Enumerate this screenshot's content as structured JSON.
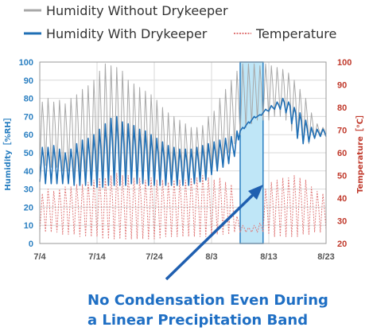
{
  "legend": {
    "without": "Humidity Without Drykeeper",
    "with": "Humidity With Drykeeper",
    "temperature": "Temperature"
  },
  "annotation": {
    "line1": "No Condensation Even During",
    "line2": "a Linear Precipitation Band"
  },
  "colors": {
    "without": "#a8a8a8",
    "with": "#1f6fb5",
    "temperature": "#e07a7a",
    "highlight_fill": "#bfe6f7",
    "highlight_stroke": "#2a7fc1",
    "arrow": "#1f5fb0"
  },
  "chart_data": {
    "type": "line",
    "x_unit": "day",
    "x_ticks": [
      "7/4",
      "7/14",
      "7/24",
      "8/3",
      "8/13",
      "8/23"
    ],
    "x_range": [
      "7/4",
      "8/23"
    ],
    "y_left": {
      "label": "Humidity［%RH］",
      "range": [
        0,
        100
      ],
      "ticks": [
        0,
        10,
        20,
        30,
        40,
        50,
        60,
        70,
        80,
        90,
        100
      ]
    },
    "y_right": {
      "label": "Temperature［℃］",
      "range": [
        20,
        100
      ],
      "ticks": [
        20,
        30,
        40,
        50,
        60,
        70,
        80,
        90,
        100
      ]
    },
    "highlight_band": {
      "from": "8/8",
      "to": "8/12"
    },
    "grid": true,
    "legend_position": "top-left",
    "series": [
      {
        "name": "Humidity Without Drykeeper",
        "axis": "left",
        "style": "solid-grey",
        "daily": [
          [
            0,
            44,
            78
          ],
          [
            1,
            43,
            80
          ],
          [
            2,
            42,
            78
          ],
          [
            3,
            42,
            79
          ],
          [
            4,
            40,
            77
          ],
          [
            5,
            40,
            80
          ],
          [
            6,
            38,
            82
          ],
          [
            7,
            37,
            85
          ],
          [
            8,
            36,
            87
          ],
          [
            9,
            35,
            90
          ],
          [
            10,
            33,
            95
          ],
          [
            11,
            33,
            99
          ],
          [
            12,
            34,
            98
          ],
          [
            13,
            35,
            97
          ],
          [
            14,
            35,
            95
          ],
          [
            15,
            36,
            90
          ],
          [
            16,
            36,
            88
          ],
          [
            17,
            36,
            86
          ],
          [
            18,
            36,
            84
          ],
          [
            19,
            36,
            82
          ],
          [
            20,
            36,
            79
          ],
          [
            21,
            35,
            75
          ],
          [
            22,
            35,
            72
          ],
          [
            23,
            35,
            70
          ],
          [
            24,
            34,
            68
          ],
          [
            25,
            33,
            66
          ],
          [
            26,
            33,
            64
          ],
          [
            27,
            35,
            64
          ],
          [
            28,
            37,
            65
          ],
          [
            29,
            38,
            70
          ],
          [
            30,
            42,
            73
          ],
          [
            31,
            43,
            80
          ],
          [
            32,
            45,
            85
          ],
          [
            33,
            50,
            90
          ],
          [
            34,
            55,
            95
          ],
          [
            35,
            60,
            99
          ],
          [
            36,
            64,
            99
          ],
          [
            37,
            66,
            99
          ],
          [
            38,
            68,
            98
          ],
          [
            39,
            68,
            99
          ],
          [
            40,
            68,
            98
          ],
          [
            41,
            70,
            97
          ],
          [
            42,
            70,
            96
          ],
          [
            43,
            68,
            94
          ],
          [
            44,
            62,
            90
          ],
          [
            45,
            58,
            85
          ],
          [
            46,
            55,
            80
          ],
          [
            47,
            55,
            72
          ],
          [
            48,
            58,
            66
          ],
          [
            49,
            60,
            64
          ],
          [
            50,
            59,
            64
          ]
        ]
      },
      {
        "name": "Humidity With Drykeeper",
        "axis": "left",
        "style": "solid-blue",
        "daily": [
          [
            0,
            34,
            53
          ],
          [
            1,
            33,
            53
          ],
          [
            2,
            33,
            54
          ],
          [
            3,
            33,
            52
          ],
          [
            4,
            33,
            50
          ],
          [
            5,
            33,
            52
          ],
          [
            6,
            32,
            55
          ],
          [
            7,
            32,
            57
          ],
          [
            8,
            32,
            58
          ],
          [
            9,
            32,
            60
          ],
          [
            10,
            31,
            63
          ],
          [
            11,
            31,
            66
          ],
          [
            12,
            32,
            69
          ],
          [
            13,
            32,
            70
          ],
          [
            14,
            32,
            67
          ],
          [
            15,
            32,
            66
          ],
          [
            16,
            33,
            65
          ],
          [
            17,
            33,
            63
          ],
          [
            18,
            33,
            62
          ],
          [
            19,
            32,
            60
          ],
          [
            20,
            32,
            58
          ],
          [
            21,
            32,
            56
          ],
          [
            22,
            32,
            54
          ],
          [
            23,
            32,
            53
          ],
          [
            24,
            32,
            52
          ],
          [
            25,
            32,
            52
          ],
          [
            26,
            32,
            52
          ],
          [
            27,
            33,
            53
          ],
          [
            28,
            34,
            54
          ],
          [
            29,
            35,
            55
          ],
          [
            30,
            38,
            56
          ],
          [
            31,
            40,
            57
          ],
          [
            32,
            42,
            58
          ],
          [
            33,
            44,
            59
          ],
          [
            34,
            48,
            62
          ],
          [
            35,
            62,
            64
          ],
          [
            36,
            65,
            67
          ],
          [
            37,
            68,
            70
          ],
          [
            38,
            70,
            71
          ],
          [
            39,
            72,
            74
          ],
          [
            40,
            73,
            76
          ],
          [
            41,
            74,
            78
          ],
          [
            42,
            74,
            80
          ],
          [
            43,
            72,
            78
          ],
          [
            44,
            66,
            75
          ],
          [
            45,
            58,
            72
          ],
          [
            46,
            55,
            68
          ],
          [
            47,
            56,
            64
          ],
          [
            48,
            58,
            63
          ],
          [
            49,
            59,
            63
          ],
          [
            50,
            59,
            63
          ]
        ]
      },
      {
        "name": "Temperature",
        "axis": "right",
        "style": "dotted-red",
        "daily": [
          [
            0,
            25,
            42
          ],
          [
            1,
            25,
            44
          ],
          [
            2,
            25,
            43
          ],
          [
            3,
            25,
            44
          ],
          [
            4,
            24,
            45
          ],
          [
            5,
            24,
            45
          ],
          [
            6,
            24,
            46
          ],
          [
            7,
            23,
            46
          ],
          [
            8,
            23,
            47
          ],
          [
            9,
            23,
            48
          ],
          [
            10,
            23,
            49
          ],
          [
            11,
            22,
            49
          ],
          [
            12,
            22,
            50
          ],
          [
            13,
            22,
            51
          ],
          [
            14,
            22,
            50
          ],
          [
            15,
            22,
            50
          ],
          [
            16,
            22,
            49
          ],
          [
            17,
            22,
            49
          ],
          [
            18,
            22,
            48
          ],
          [
            19,
            22,
            49
          ],
          [
            20,
            22,
            48
          ],
          [
            21,
            22,
            48
          ],
          [
            22,
            23,
            47
          ],
          [
            23,
            23,
            48
          ],
          [
            24,
            23,
            48
          ],
          [
            25,
            23,
            48
          ],
          [
            26,
            23,
            49
          ],
          [
            27,
            23,
            49
          ],
          [
            28,
            23,
            50
          ],
          [
            29,
            23,
            49
          ],
          [
            30,
            23,
            48
          ],
          [
            31,
            24,
            49
          ],
          [
            32,
            24,
            47
          ],
          [
            33,
            24,
            46
          ],
          [
            34,
            25,
            32
          ],
          [
            35,
            25,
            28
          ],
          [
            36,
            25,
            27
          ],
          [
            37,
            25,
            28
          ],
          [
            38,
            25,
            29
          ],
          [
            39,
            25,
            44
          ],
          [
            40,
            24,
            47
          ],
          [
            41,
            23,
            48
          ],
          [
            42,
            23,
            49
          ],
          [
            43,
            23,
            49
          ],
          [
            44,
            23,
            50
          ],
          [
            45,
            23,
            49
          ],
          [
            46,
            24,
            48
          ],
          [
            47,
            24,
            45
          ],
          [
            48,
            25,
            43
          ],
          [
            49,
            25,
            42
          ],
          [
            50,
            26,
            40
          ]
        ]
      }
    ]
  }
}
